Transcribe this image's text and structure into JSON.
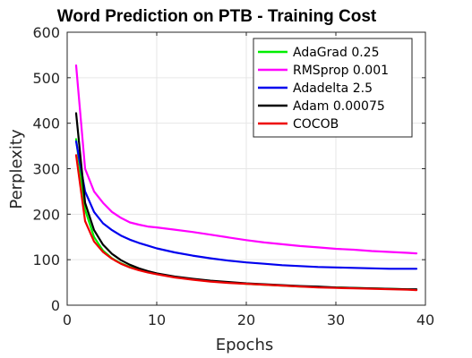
{
  "chart_data": {
    "type": "line",
    "title": "Word Prediction on PTB - Training Cost",
    "xlabel": "Epochs",
    "ylabel": "Perplexity",
    "xlim": [
      0,
      40
    ],
    "ylim": [
      0,
      600
    ],
    "xticks": [
      0,
      10,
      20,
      30,
      40
    ],
    "yticks": [
      0,
      100,
      200,
      300,
      400,
      500,
      600
    ],
    "grid": true,
    "legend_position": "top-right",
    "series": [
      {
        "name": "AdaGrad 0.25",
        "color": "#00ee00",
        "x": [
          1,
          2,
          3,
          4,
          5,
          6,
          7,
          8,
          9,
          10,
          12,
          14,
          16,
          18,
          20,
          22,
          24,
          26,
          28,
          30,
          32,
          34,
          36,
          38,
          39
        ],
        "y": [
          365,
          210,
          150,
          120,
          103,
          92,
          84,
          78,
          73,
          69,
          62,
          57,
          53,
          50,
          47,
          45,
          43,
          41,
          40,
          39,
          38,
          37,
          36,
          35,
          34
        ]
      },
      {
        "name": "RMSprop 0.001",
        "color": "#ff00ff",
        "x": [
          1,
          2,
          3,
          4,
          5,
          6,
          7,
          8,
          9,
          10,
          12,
          14,
          16,
          18,
          20,
          22,
          24,
          26,
          28,
          30,
          32,
          34,
          36,
          38,
          39
        ],
        "y": [
          527,
          300,
          250,
          225,
          205,
          192,
          182,
          177,
          173,
          171,
          166,
          161,
          155,
          149,
          143,
          138,
          134,
          130,
          127,
          124,
          122,
          119,
          117,
          115,
          114
        ]
      },
      {
        "name": "Adadelta 2.5",
        "color": "#0000ee",
        "x": [
          1,
          2,
          3,
          4,
          5,
          6,
          7,
          8,
          9,
          10,
          12,
          14,
          16,
          18,
          20,
          22,
          24,
          26,
          28,
          30,
          32,
          34,
          36,
          38,
          39
        ],
        "y": [
          360,
          250,
          205,
          180,
          165,
          153,
          144,
          137,
          131,
          125,
          116,
          109,
          103,
          98,
          94,
          91,
          88,
          86,
          84,
          83,
          82,
          81,
          80,
          80,
          80
        ]
      },
      {
        "name": "Adam 0.00075",
        "color": "#000000",
        "x": [
          1,
          2,
          3,
          4,
          5,
          6,
          7,
          8,
          9,
          10,
          12,
          14,
          16,
          18,
          20,
          22,
          24,
          26,
          28,
          30,
          32,
          34,
          36,
          38,
          39
        ],
        "y": [
          422,
          225,
          165,
          133,
          113,
          99,
          89,
          81,
          75,
          70,
          63,
          58,
          54,
          51,
          48,
          46,
          44,
          42,
          41,
          39,
          38,
          37,
          36,
          35,
          35
        ]
      },
      {
        "name": "COCOB",
        "color": "#ee0000",
        "x": [
          1,
          2,
          3,
          4,
          5,
          6,
          7,
          8,
          9,
          10,
          12,
          14,
          16,
          18,
          20,
          22,
          24,
          26,
          28,
          30,
          32,
          34,
          36,
          38,
          39
        ],
        "y": [
          330,
          185,
          140,
          117,
          102,
          91,
          83,
          77,
          72,
          68,
          61,
          56,
          52,
          49,
          47,
          45,
          43,
          41,
          39,
          38,
          37,
          36,
          35,
          34,
          33
        ]
      }
    ]
  }
}
